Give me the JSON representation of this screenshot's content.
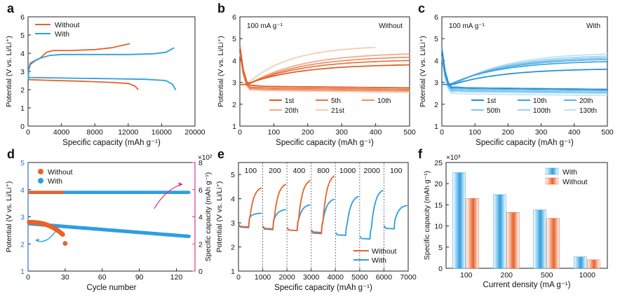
{
  "colors": {
    "without": "#e8622a",
    "with": "#2d9fe0",
    "magenta": "#e0368a"
  },
  "chart_data": [
    {
      "panel": "a",
      "type": "line",
      "xlabel": "Specific capacity (mAh g⁻¹)",
      "ylabel": "Potential (V vs. Li/Li⁺)",
      "xlim": [
        0,
        20000
      ],
      "ylim": [
        0,
        6
      ],
      "xticks": [
        0,
        4000,
        8000,
        12000,
        16000,
        20000
      ],
      "yticks": [
        0,
        1,
        2,
        3,
        4,
        5,
        6
      ],
      "legend": "top-left",
      "series": [
        {
          "name": "Without",
          "color": "#e8622a",
          "segments": [
            [
              [
                0,
                2.5
              ],
              [
                30,
                2.56
              ],
              [
                200,
                2.55
              ],
              [
                2000,
                2.52
              ],
              [
                6000,
                2.47
              ],
              [
                10000,
                2.4
              ],
              [
                12000,
                2.34
              ],
              [
                12800,
                2.2
              ],
              [
                13200,
                2.0
              ]
            ],
            [
              [
                0,
                2.3
              ],
              [
                80,
                3.1
              ],
              [
                300,
                3.4
              ],
              [
                900,
                3.6
              ],
              [
                1500,
                3.75
              ],
              [
                2200,
                4.05
              ],
              [
                3000,
                4.15
              ],
              [
                5000,
                4.15
              ],
              [
                8000,
                4.2
              ],
              [
                10000,
                4.3
              ],
              [
                12200,
                4.53
              ]
            ]
          ]
        },
        {
          "name": "With",
          "color": "#2d9fe0",
          "segments": [
            [
              [
                0,
                2.7
              ],
              [
                200,
                2.67
              ],
              [
                4000,
                2.64
              ],
              [
                10000,
                2.6
              ],
              [
                14000,
                2.57
              ],
              [
                16500,
                2.5
              ],
              [
                17300,
                2.3
              ],
              [
                17700,
                1.98
              ]
            ],
            [
              [
                0,
                2.3
              ],
              [
                60,
                3.05
              ],
              [
                250,
                3.45
              ],
              [
                800,
                3.6
              ],
              [
                1600,
                3.75
              ],
              [
                2600,
                3.88
              ],
              [
                4000,
                3.93
              ],
              [
                8000,
                3.93
              ],
              [
                12000,
                3.93
              ],
              [
                15000,
                3.97
              ],
              [
                16500,
                4.05
              ],
              [
                17500,
                4.3
              ]
            ]
          ]
        }
      ]
    },
    {
      "panel": "b",
      "type": "line",
      "xlabel": "Specific capacity (mAh g⁻¹)",
      "ylabel": "Potential (V vs. Li/Li⁺)",
      "xlim": [
        0,
        500
      ],
      "ylim": [
        1,
        6
      ],
      "xticks": [
        0,
        100,
        200,
        300,
        400,
        500
      ],
      "yticks": [
        1,
        2,
        3,
        4,
        5,
        6
      ],
      "annotations": [
        "100 mA g⁻¹",
        "Without"
      ],
      "legend": "bottom-right",
      "series": [
        {
          "name": "1st",
          "color": "#e15a1e",
          "dis_end": 2.75,
          "ch_end": 3.8,
          "dis_start": 4.6
        },
        {
          "name": "5th",
          "color": "#e97442",
          "dis_end": 2.68,
          "ch_end": 4.0,
          "dis_start": 4.3
        },
        {
          "name": "10th",
          "color": "#ef8d63",
          "dis_end": 2.62,
          "ch_end": 4.15,
          "dis_start": 4.3
        },
        {
          "name": "20th",
          "color": "#f4a886",
          "dis_end": 2.6,
          "ch_end": 4.3,
          "dis_start": 4.3
        },
        {
          "name": "21st",
          "color": "#f9c9b1",
          "dis_end": 2.55,
          "ch_end": 4.6,
          "dis_start": 4.3,
          "ch_x_end": 400
        }
      ]
    },
    {
      "panel": "c",
      "type": "line",
      "xlabel": "Specific capacity (mAh g⁻¹)",
      "ylabel": "Potential (V vs. Li/Li⁺)",
      "xlim": [
        0,
        500
      ],
      "ylim": [
        1,
        6
      ],
      "xticks": [
        0,
        100,
        200,
        300,
        400,
        500
      ],
      "yticks": [
        1,
        2,
        3,
        4,
        5,
        6
      ],
      "annotations": [
        "100 mA g⁻¹",
        "With"
      ],
      "legend": "bottom-right",
      "series": [
        {
          "name": "1st",
          "color": "#1f8fd6",
          "dis_end": 2.68,
          "ch_end": 3.6,
          "dis_start": 4.5
        },
        {
          "name": "10th",
          "color": "#3da4e2",
          "dis_end": 2.68,
          "ch_end": 3.95,
          "dis_start": 4.1
        },
        {
          "name": "20th",
          "color": "#5bb4e8",
          "dis_end": 2.62,
          "ch_end": 4.05,
          "dis_start": 4.1
        },
        {
          "name": "50th",
          "color": "#7ec5ee",
          "dis_end": 2.55,
          "ch_end": 4.12,
          "dis_start": 4.1
        },
        {
          "name": "100th",
          "color": "#9dd3f2",
          "dis_end": 2.5,
          "ch_end": 4.2,
          "dis_start": 4.1
        },
        {
          "name": "130th",
          "color": "#bfe2f7",
          "dis_end": 2.4,
          "ch_end": 4.3,
          "dis_start": 4.1
        }
      ]
    },
    {
      "panel": "d",
      "type": "scatter",
      "xlabel": "Cycle number",
      "ylabel": "Potential (V vs. Li/Li⁺)",
      "ylabel_right": "Specific capacity (mAh g⁻¹)",
      "right_scale": "×10²",
      "xlim": [
        0,
        135
      ],
      "ylim": [
        1,
        5
      ],
      "ylim_right": [
        0,
        8
      ],
      "xticks": [
        0,
        30,
        60,
        90,
        120
      ],
      "yticks": [
        1,
        2,
        3,
        4,
        5
      ],
      "yticks_right": [
        0,
        2,
        4,
        6,
        8
      ],
      "legend": "top-left",
      "series": [
        {
          "name": "Without",
          "color": "#e8622a",
          "cycles": 28,
          "capacity": 5.8,
          "potential_start": 2.8,
          "potential_end": 2.35,
          "last_potential": 2.02
        },
        {
          "name": "With",
          "color": "#2d9fe0",
          "cycles": 130,
          "capacity": 5.8,
          "potential_start": 2.75,
          "potential_end": 2.28
        }
      ]
    },
    {
      "panel": "e",
      "type": "line",
      "xlabel": "Specific capacity (mAh g⁻¹)",
      "ylabel": "Potential (V vs. Li/Li⁺)",
      "xlim": [
        0,
        7000
      ],
      "ylim": [
        1,
        5.5
      ],
      "xticks": [
        0,
        1000,
        2000,
        3000,
        4000,
        5000,
        6000,
        7000
      ],
      "yticks": [
        1,
        2,
        3,
        4,
        5
      ],
      "rate_labels": [
        "100",
        "200",
        "400",
        "800",
        "1000",
        "2000",
        "100"
      ],
      "legend": "bottom-right",
      "series": [
        {
          "name": "Without",
          "color": "#e8622a",
          "cycles": [
            {
              "start": 0,
              "dis": 2.83,
              "ch": 4.45
            },
            {
              "start": 1000,
              "dis": 2.75,
              "ch": 4.6
            },
            {
              "start": 2000,
              "dis": 2.68,
              "ch": 4.75
            },
            {
              "start": 3000,
              "dis": 2.55,
              "ch": 4.95
            }
          ]
        },
        {
          "name": "With",
          "color": "#2d9fe0",
          "cycles": [
            {
              "start": 0,
              "dis": 2.8,
              "ch": 3.4
            },
            {
              "start": 1000,
              "dis": 2.72,
              "ch": 3.55
            },
            {
              "start": 2000,
              "dis": 2.68,
              "ch": 3.75
            },
            {
              "start": 3000,
              "dis": 2.6,
              "ch": 3.98
            },
            {
              "start": 4000,
              "dis": 2.48,
              "ch": 4.1
            },
            {
              "start": 5000,
              "dis": 2.33,
              "ch": 4.35
            },
            {
              "start": 6000,
              "dis": 2.75,
              "ch": 3.72
            }
          ]
        }
      ]
    },
    {
      "panel": "f",
      "type": "bar",
      "xlabel": "Current density (mA g⁻¹)",
      "ylabel": "Specific capacity (mAh g⁻¹)",
      "y_scale": "×10³",
      "categories": [
        "100",
        "200",
        "500",
        "1000"
      ],
      "ylim": [
        0,
        25
      ],
      "yticks": [
        0,
        5,
        10,
        15,
        20,
        25
      ],
      "legend": "top-right",
      "series": [
        {
          "name": "With",
          "color": "#2d9fe0",
          "values": [
            22.6,
            17.4,
            13.8,
            2.7
          ]
        },
        {
          "name": "Without",
          "color": "#e8622a",
          "values": [
            16.5,
            13.2,
            11.8,
            2.0
          ]
        }
      ]
    }
  ],
  "panel_labels": [
    "a",
    "b",
    "c",
    "d",
    "e",
    "f"
  ]
}
